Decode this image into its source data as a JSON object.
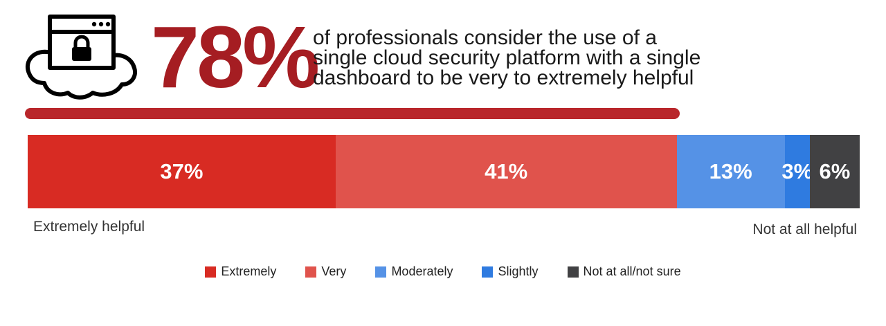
{
  "header": {
    "stat": "78%",
    "headline": "of professionals consider the use of a\nsingle cloud security platform with a single\ndashboard to be very to extremely helpful"
  },
  "icons": {
    "cloud": "cloud-lock-window-icon"
  },
  "colors": {
    "stat": "#a51d22",
    "divider": "#b9262b",
    "extremely": "#d82b23",
    "very": "#e0534c",
    "moderately": "#5592e6",
    "slightly": "#2f7be0",
    "not_at_all": "#414143"
  },
  "scale_labels": {
    "left": "Extremely helpful",
    "right": "Not at all helpful"
  },
  "chart_data": {
    "type": "bar",
    "orientation": "horizontal-stacked-100",
    "series": [
      {
        "name": "Extremely",
        "value": 37,
        "label": "37%",
        "color": "#d82b23"
      },
      {
        "name": "Very",
        "value": 41,
        "label": "41%",
        "color": "#e0534c"
      },
      {
        "name": "Moderately",
        "value": 13,
        "label": "13%",
        "color": "#5592e6"
      },
      {
        "name": "Slightly",
        "value": 3,
        "label": "3%",
        "color": "#2f7be0"
      },
      {
        "name": "Not at all/not sure",
        "value": 6,
        "label": "6%",
        "color": "#414143"
      }
    ],
    "legend_position": "bottom"
  }
}
